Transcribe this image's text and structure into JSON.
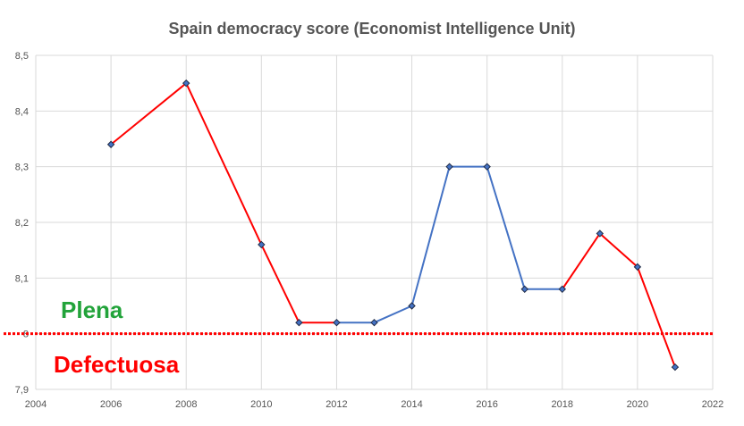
{
  "chart_data": {
    "type": "line",
    "title": "Spain democracy score (Economist Intelligence Unit)",
    "xlabel": "",
    "ylabel": "",
    "xlim": [
      2004,
      2022
    ],
    "ylim": [
      7.9,
      8.5
    ],
    "x_ticks": [
      "2004",
      "2006",
      "2008",
      "2010",
      "2012",
      "2014",
      "2016",
      "2018",
      "2020",
      "2022"
    ],
    "y_ticks": [
      "7,9",
      "8",
      "8,1",
      "8,2",
      "8,3",
      "8,4",
      "8,5"
    ],
    "grid": true,
    "series": [
      {
        "x": [
          2006,
          2008,
          2010,
          2011,
          2012,
          2013,
          2014,
          2015,
          2016,
          2017,
          2018,
          2019,
          2020,
          2021
        ],
        "y": [
          8.34,
          8.45,
          8.16,
          8.02,
          8.02,
          8.02,
          8.05,
          8.3,
          8.3,
          8.08,
          8.08,
          8.18,
          8.12,
          7.94
        ],
        "segment_colors": [
          "#ff0000",
          "#ff0000",
          "#ff0000",
          "#ff0000",
          "#4472c4",
          "#4472c4",
          "#4472c4",
          "#4472c4",
          "#4472c4",
          "#4472c4",
          "#ff0000",
          "#ff0000",
          "#ff0000"
        ]
      }
    ],
    "threshold": {
      "y": 8.0,
      "color": "#ff0000",
      "style": "dotted"
    },
    "annotations": [
      {
        "text": "Plena",
        "color": "#22a33a"
      },
      {
        "text": "Defectuosa",
        "color": "#ff0000"
      }
    ]
  }
}
